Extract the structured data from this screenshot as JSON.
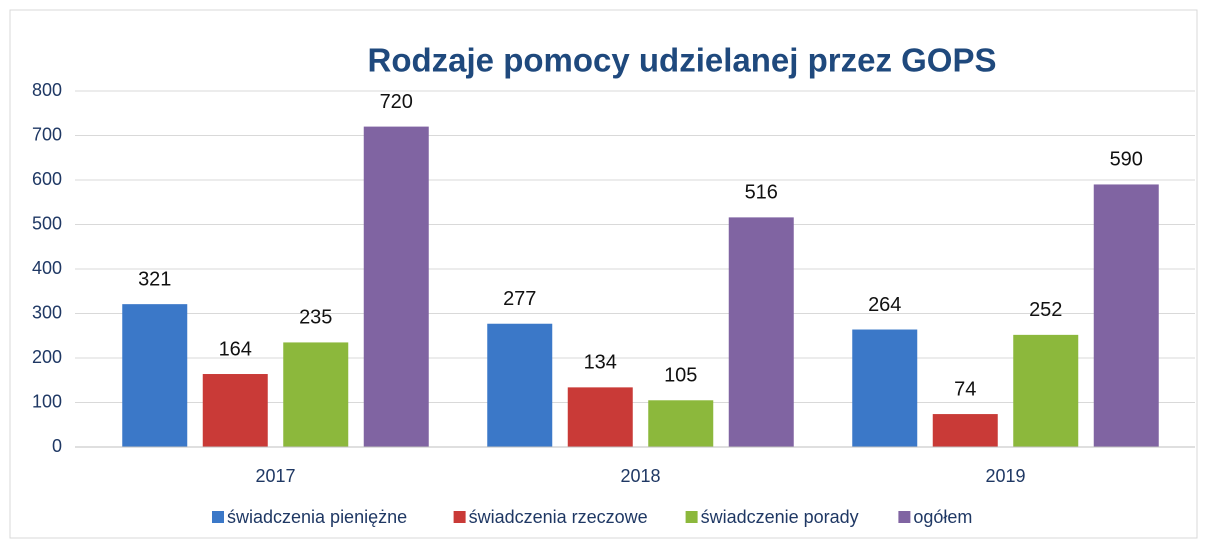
{
  "chart_data": {
    "type": "bar",
    "title": "Rodzaje pomocy udzielanej przez GOPS",
    "categories": [
      "2017",
      "2018",
      "2019"
    ],
    "series": [
      {
        "name": "świadczenia pieniężne",
        "color": "#3b78c8",
        "values": [
          321,
          277,
          264
        ]
      },
      {
        "name": "świadczenia rzeczowe",
        "color": "#c93a37",
        "values": [
          164,
          134,
          74
        ]
      },
      {
        "name": "świadczenie porady",
        "color": "#8cb83c",
        "values": [
          235,
          105,
          252
        ]
      },
      {
        "name": "ogółem",
        "color": "#8064a2",
        "values": [
          720,
          516,
          590
        ]
      }
    ],
    "ylim": [
      0,
      800
    ],
    "yticks": [
      0,
      100,
      200,
      300,
      400,
      500,
      600,
      700,
      800
    ],
    "grid": true
  }
}
